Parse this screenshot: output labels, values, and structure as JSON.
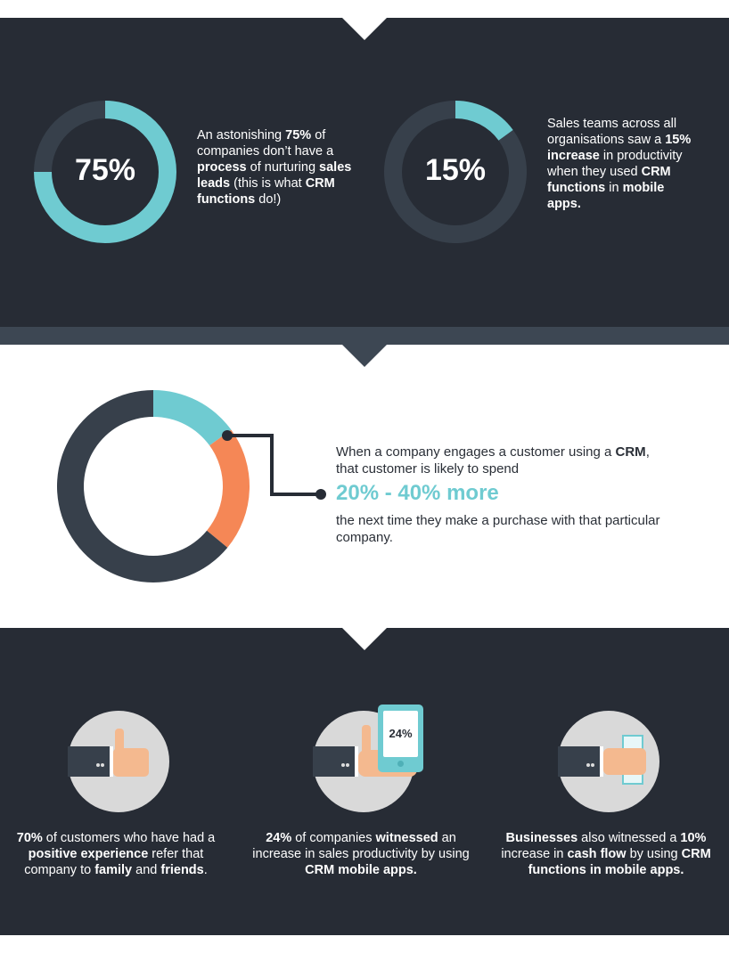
{
  "colors": {
    "dark": "#272c35",
    "band": "#3d4753",
    "teal": "#6fcbd1",
    "orange": "#f58756",
    "ring": "#37404b",
    "circle": "#d9d9d9"
  },
  "stat1": {
    "value": 75,
    "label": "75%",
    "text": [
      {
        "t": "An astonishing ",
        "b": false
      },
      {
        "t": "75%",
        "b": true
      },
      {
        "t": " of companies don’t have a ",
        "b": false
      },
      {
        "t": "process",
        "b": true
      },
      {
        "t": " of nurturing ",
        "b": false
      },
      {
        "t": "sales leads",
        "b": true
      },
      {
        "t": " (this is what ",
        "b": false
      },
      {
        "t": "CRM functions",
        "b": true
      },
      {
        "t": " do!)",
        "b": false
      }
    ]
  },
  "stat2": {
    "value": 15,
    "label": "15%",
    "text": [
      {
        "t": "Sales teams across all organisations saw a ",
        "b": false
      },
      {
        "t": "15% increase",
        "b": true
      },
      {
        "t": " in productivity when they used ",
        "b": false
      },
      {
        "t": "CRM functions",
        "b": true
      },
      {
        "t": " in ",
        "b": false
      },
      {
        "t": "mobile apps.",
        "b": true
      }
    ]
  },
  "stat3": {
    "segments": [
      {
        "value": 15,
        "color": "teal"
      },
      {
        "value": 21,
        "color": "orange"
      },
      {
        "value": 64,
        "color": "ring"
      }
    ],
    "text_before": [
      {
        "t": "When a company engages a customer using a ",
        "b": false
      },
      {
        "t": "CRM",
        "b": true
      },
      {
        "t": ", that customer is likely to spend",
        "b": false
      }
    ],
    "highlight": "20% - 40% more",
    "text_after": "the next time they make a purchase with that particular company."
  },
  "bottom": [
    {
      "icon": "thumbs-up-icon",
      "text": [
        {
          "t": "70%",
          "b": true
        },
        {
          "t": " of customers who have had a ",
          "b": false
        },
        {
          "t": "positive experience",
          "b": true
        },
        {
          "t": " refer that company to ",
          "b": false
        },
        {
          "t": "family",
          "b": true
        },
        {
          "t": " and ",
          "b": false
        },
        {
          "t": "friends",
          "b": true
        },
        {
          "t": ".",
          "b": false
        }
      ]
    },
    {
      "icon": "phone-in-hand-icon",
      "phone_label": "24%",
      "text": [
        {
          "t": "24%",
          "b": true
        },
        {
          "t": " of companies ",
          "b": false
        },
        {
          "t": "witnessed",
          "b": true
        },
        {
          "t": " an increase in sales productivity by using ",
          "b": false
        },
        {
          "t": "CRM mobile apps.",
          "b": true
        }
      ]
    },
    {
      "icon": "cash-in-hand-icon",
      "text": [
        {
          "t": "Businesses",
          "b": true
        },
        {
          "t": " also witnessed a ",
          "b": false
        },
        {
          "t": "10%",
          "b": true
        },
        {
          "t": " increase in ",
          "b": false
        },
        {
          "t": "cash flow",
          "b": true
        },
        {
          "t": " by using ",
          "b": false
        },
        {
          "t": "CRM functions in mobile apps.",
          "b": true
        }
      ]
    }
  ]
}
